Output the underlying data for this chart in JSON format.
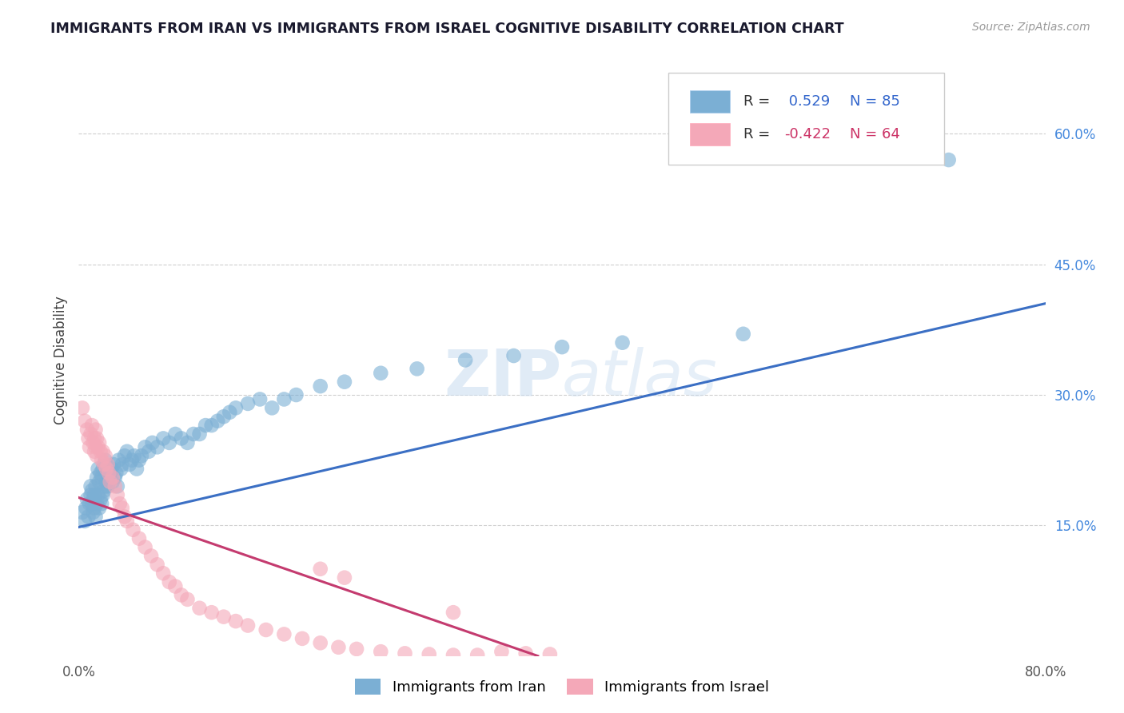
{
  "title": "IMMIGRANTS FROM IRAN VS IMMIGRANTS FROM ISRAEL COGNITIVE DISABILITY CORRELATION CHART",
  "source": "Source: ZipAtlas.com",
  "ylabel": "Cognitive Disability",
  "legend_label_1": "Immigrants from Iran",
  "legend_label_2": "Immigrants from Israel",
  "R1": 0.529,
  "N1": 85,
  "R2": -0.422,
  "N2": 64,
  "xlim": [
    0.0,
    0.8
  ],
  "ylim": [
    0.0,
    0.68
  ],
  "color_iran": "#7BAFD4",
  "color_israel": "#F4A8B8",
  "line_color_iran": "#3B6FC4",
  "line_color_israel": "#C43B6F",
  "watermark_zip": "ZIP",
  "watermark_atlas": "atlas",
  "background_color": "#FFFFFF",
  "grid_color": "#BBBBBB",
  "title_color": "#1A1A2E",
  "iran_x": [
    0.003,
    0.005,
    0.006,
    0.007,
    0.008,
    0.009,
    0.01,
    0.01,
    0.011,
    0.011,
    0.012,
    0.012,
    0.013,
    0.013,
    0.014,
    0.014,
    0.015,
    0.015,
    0.016,
    0.016,
    0.017,
    0.017,
    0.018,
    0.018,
    0.019,
    0.019,
    0.02,
    0.02,
    0.021,
    0.021,
    0.022,
    0.022,
    0.023,
    0.024,
    0.025,
    0.026,
    0.027,
    0.028,
    0.029,
    0.03,
    0.031,
    0.032,
    0.033,
    0.035,
    0.036,
    0.038,
    0.04,
    0.042,
    0.044,
    0.046,
    0.048,
    0.05,
    0.052,
    0.055,
    0.058,
    0.061,
    0.065,
    0.07,
    0.075,
    0.08,
    0.085,
    0.09,
    0.095,
    0.1,
    0.105,
    0.11,
    0.115,
    0.12,
    0.125,
    0.13,
    0.14,
    0.15,
    0.16,
    0.17,
    0.18,
    0.2,
    0.22,
    0.25,
    0.28,
    0.32,
    0.36,
    0.4,
    0.45,
    0.55,
    0.72
  ],
  "iran_y": [
    0.165,
    0.155,
    0.17,
    0.18,
    0.16,
    0.175,
    0.185,
    0.195,
    0.175,
    0.19,
    0.165,
    0.18,
    0.17,
    0.185,
    0.16,
    0.195,
    0.175,
    0.205,
    0.185,
    0.215,
    0.17,
    0.2,
    0.18,
    0.21,
    0.175,
    0.205,
    0.185,
    0.215,
    0.19,
    0.22,
    0.195,
    0.225,
    0.2,
    0.195,
    0.205,
    0.21,
    0.215,
    0.2,
    0.22,
    0.205,
    0.21,
    0.195,
    0.225,
    0.215,
    0.22,
    0.23,
    0.235,
    0.22,
    0.225,
    0.23,
    0.215,
    0.225,
    0.23,
    0.24,
    0.235,
    0.245,
    0.24,
    0.25,
    0.245,
    0.255,
    0.25,
    0.245,
    0.255,
    0.255,
    0.265,
    0.265,
    0.27,
    0.275,
    0.28,
    0.285,
    0.29,
    0.295,
    0.285,
    0.295,
    0.3,
    0.31,
    0.315,
    0.325,
    0.33,
    0.34,
    0.345,
    0.355,
    0.36,
    0.37,
    0.57
  ],
  "israel_x": [
    0.003,
    0.005,
    0.007,
    0.008,
    0.009,
    0.01,
    0.011,
    0.012,
    0.013,
    0.013,
    0.014,
    0.014,
    0.015,
    0.015,
    0.016,
    0.017,
    0.018,
    0.019,
    0.02,
    0.021,
    0.022,
    0.023,
    0.024,
    0.025,
    0.026,
    0.028,
    0.03,
    0.032,
    0.034,
    0.036,
    0.038,
    0.04,
    0.045,
    0.05,
    0.055,
    0.06,
    0.065,
    0.07,
    0.075,
    0.08,
    0.085,
    0.09,
    0.1,
    0.11,
    0.12,
    0.13,
    0.14,
    0.155,
    0.17,
    0.185,
    0.2,
    0.215,
    0.23,
    0.25,
    0.27,
    0.29,
    0.31,
    0.33,
    0.35,
    0.37,
    0.39,
    0.2,
    0.22,
    0.31
  ],
  "israel_y": [
    0.285,
    0.27,
    0.26,
    0.25,
    0.24,
    0.255,
    0.265,
    0.245,
    0.235,
    0.25,
    0.26,
    0.24,
    0.25,
    0.23,
    0.24,
    0.245,
    0.235,
    0.225,
    0.235,
    0.22,
    0.23,
    0.215,
    0.22,
    0.21,
    0.2,
    0.205,
    0.195,
    0.185,
    0.175,
    0.17,
    0.16,
    0.155,
    0.145,
    0.135,
    0.125,
    0.115,
    0.105,
    0.095,
    0.085,
    0.08,
    0.07,
    0.065,
    0.055,
    0.05,
    0.045,
    0.04,
    0.035,
    0.03,
    0.025,
    0.02,
    0.015,
    0.01,
    0.008,
    0.005,
    0.003,
    0.002,
    0.001,
    0.001,
    0.005,
    0.003,
    0.002,
    0.1,
    0.09,
    0.05
  ],
  "iran_line_x": [
    0.0,
    0.8
  ],
  "iran_line_y": [
    0.148,
    0.405
  ],
  "israel_line_x": [
    0.0,
    0.38
  ],
  "israel_line_y": [
    0.182,
    0.0
  ]
}
